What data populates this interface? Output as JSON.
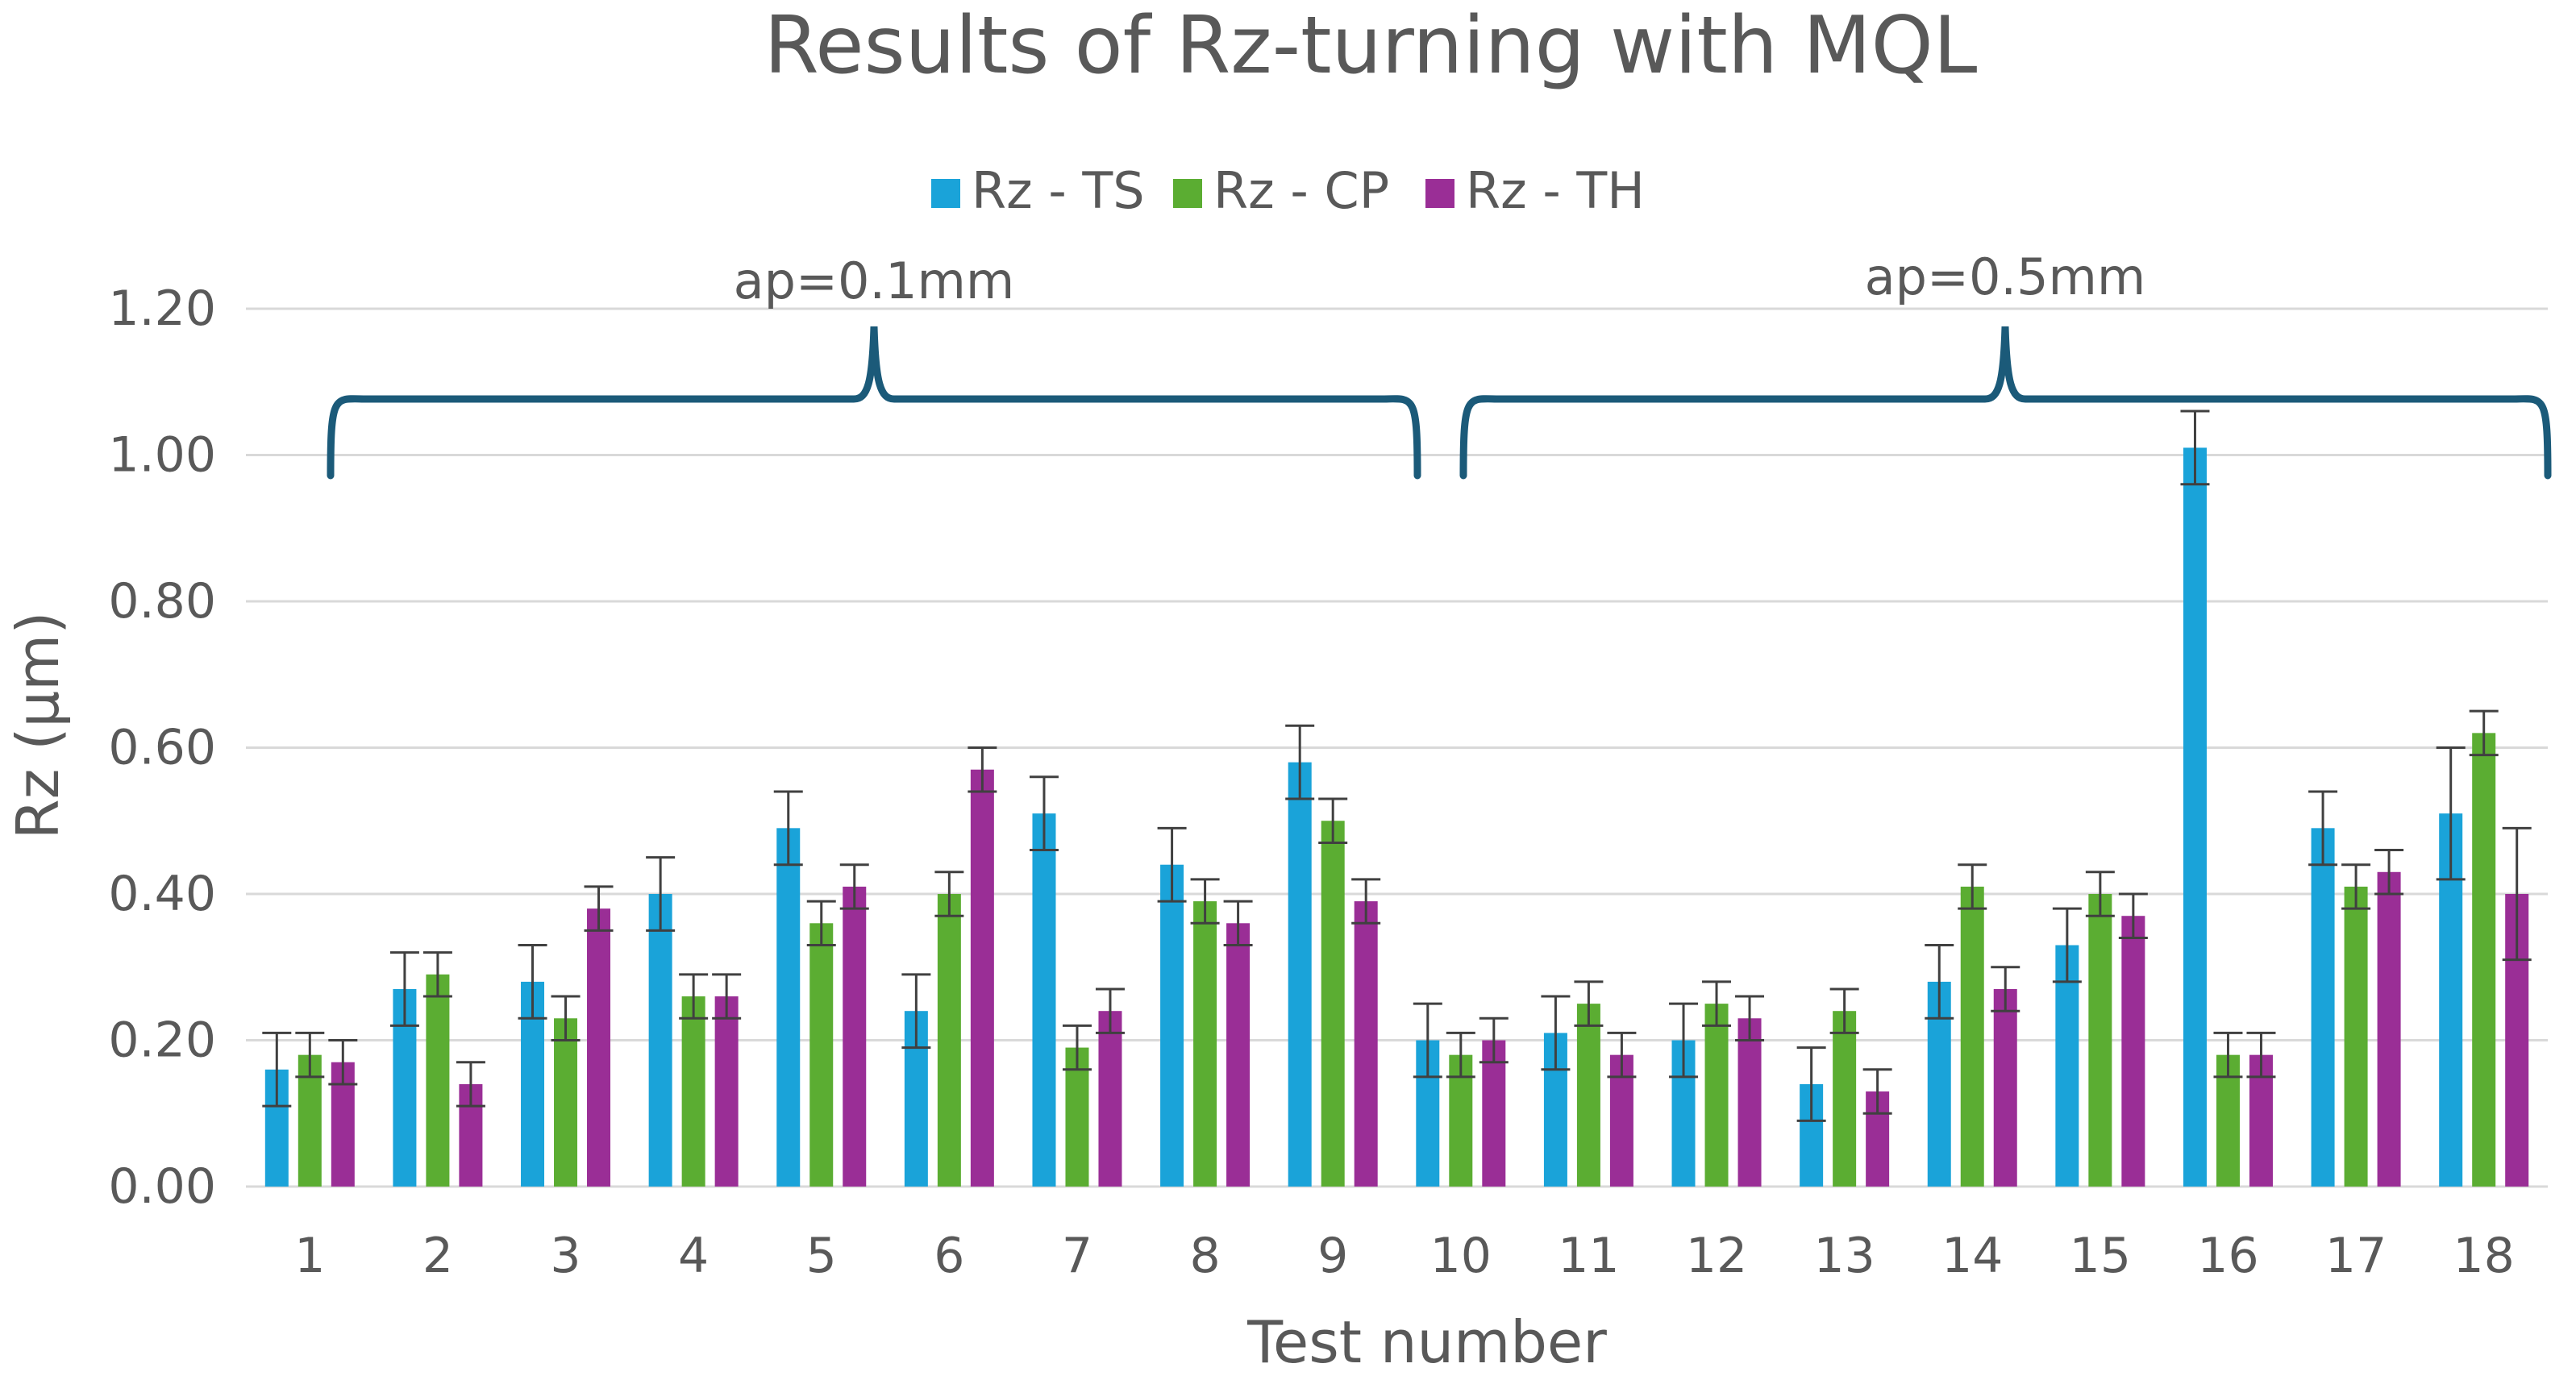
{
  "chart_data": {
    "type": "bar",
    "title": "Results of Rz-turning with MQL",
    "xlabel": "Test number",
    "ylabel": "Rz (µm)",
    "ylim": [
      0,
      1.2
    ],
    "yticks": [
      "0.00",
      "0.20",
      "0.40",
      "0.60",
      "0.80",
      "1.00",
      "1.20"
    ],
    "grid": true,
    "legend_position": "top-center",
    "categories": [
      "1",
      "2",
      "3",
      "4",
      "5",
      "6",
      "7",
      "8",
      "9",
      "10",
      "11",
      "12",
      "13",
      "14",
      "15",
      "16",
      "17",
      "18"
    ],
    "series": [
      {
        "name": "Rz - TS",
        "color": "#1AA3D9",
        "values": [
          0.16,
          0.27,
          0.28,
          0.4,
          0.49,
          0.24,
          0.51,
          0.44,
          0.58,
          0.2,
          0.21,
          0.2,
          0.14,
          0.28,
          0.33,
          1.01,
          0.49,
          0.51
        ],
        "errors": [
          0.05,
          0.05,
          0.05,
          0.05,
          0.05,
          0.05,
          0.05,
          0.05,
          0.05,
          0.05,
          0.05,
          0.05,
          0.05,
          0.05,
          0.05,
          0.05,
          0.05,
          0.09
        ]
      },
      {
        "name": "Rz - CP",
        "color": "#5BAD32",
        "values": [
          0.18,
          0.29,
          0.23,
          0.26,
          0.36,
          0.4,
          0.19,
          0.39,
          0.5,
          0.18,
          0.25,
          0.25,
          0.24,
          0.41,
          0.4,
          0.18,
          0.41,
          0.62
        ],
        "errors": [
          0.03,
          0.03,
          0.03,
          0.03,
          0.03,
          0.03,
          0.03,
          0.03,
          0.03,
          0.03,
          0.03,
          0.03,
          0.03,
          0.03,
          0.03,
          0.03,
          0.03,
          0.03
        ]
      },
      {
        "name": "Rz - TH",
        "color": "#9A2E96",
        "values": [
          0.17,
          0.14,
          0.38,
          0.26,
          0.41,
          0.57,
          0.24,
          0.36,
          0.39,
          0.2,
          0.18,
          0.23,
          0.13,
          0.27,
          0.37,
          0.18,
          0.43,
          0.4
        ],
        "errors": [
          0.03,
          0.03,
          0.03,
          0.03,
          0.03,
          0.03,
          0.03,
          0.03,
          0.03,
          0.03,
          0.03,
          0.03,
          0.03,
          0.03,
          0.03,
          0.03,
          0.03,
          0.09
        ]
      }
    ],
    "annotations": [
      {
        "text": "ap=0.1mm",
        "tests": [
          "1",
          "9"
        ]
      },
      {
        "text": "ap=0.5mm",
        "tests": [
          "10",
          "18"
        ]
      }
    ],
    "brace_color": "#1B5A79",
    "gridline_color": "#D9D9D9",
    "error_bar_color": "#404040"
  }
}
